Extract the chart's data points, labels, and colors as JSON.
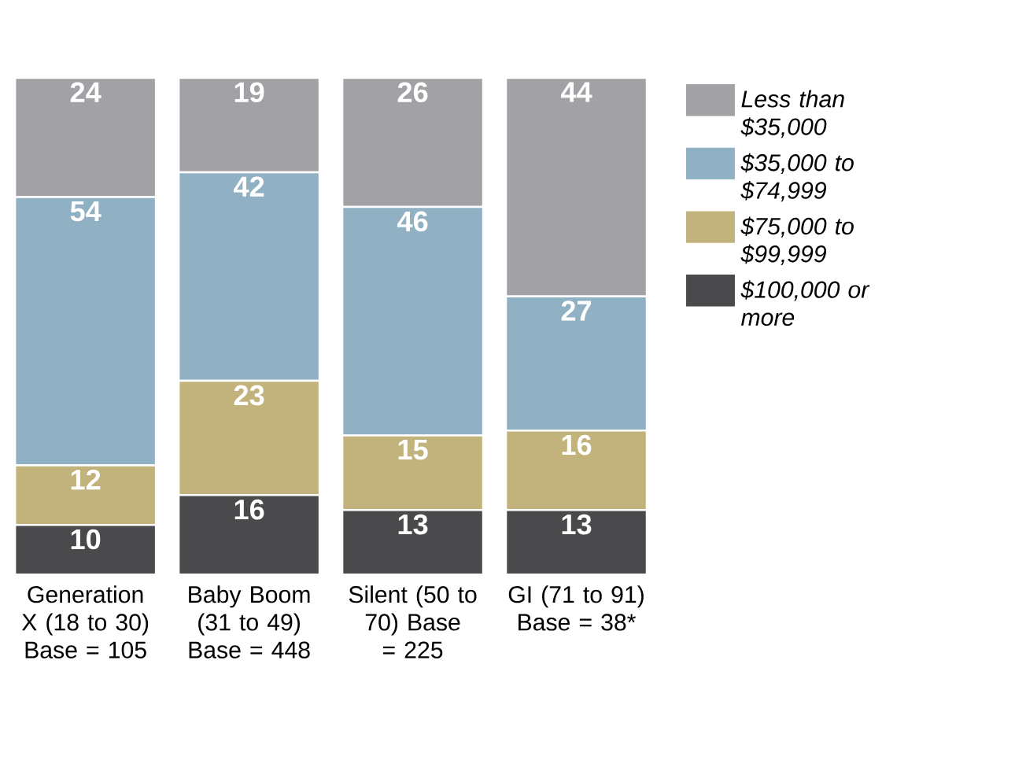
{
  "chart_data": {
    "type": "bar",
    "stacked": true,
    "data_labels": true,
    "legend": "right",
    "categories": [
      "Generation X (18 to 30) Base = 105",
      "Baby Boom (31 to 49) Base = 448",
      "Silent (50 to 70) Base = 225",
      "GI (71 to 91) Base = 38*"
    ],
    "series": [
      {
        "name": "$100,000 or more",
        "color": "#4a4a4c",
        "values": [
          10,
          16,
          13,
          13
        ]
      },
      {
        "name": "$75,000 to $99,999",
        "color": "#c2b37c",
        "values": [
          12,
          23,
          15,
          16
        ]
      },
      {
        "name": "$35,000 to $74,999",
        "color": "#90b0c4",
        "values": [
          54,
          42,
          46,
          27
        ]
      },
      {
        "name": "Less than $35,000",
        "color": "#a2a2a6",
        "values": [
          24,
          19,
          26,
          44
        ]
      }
    ]
  }
}
